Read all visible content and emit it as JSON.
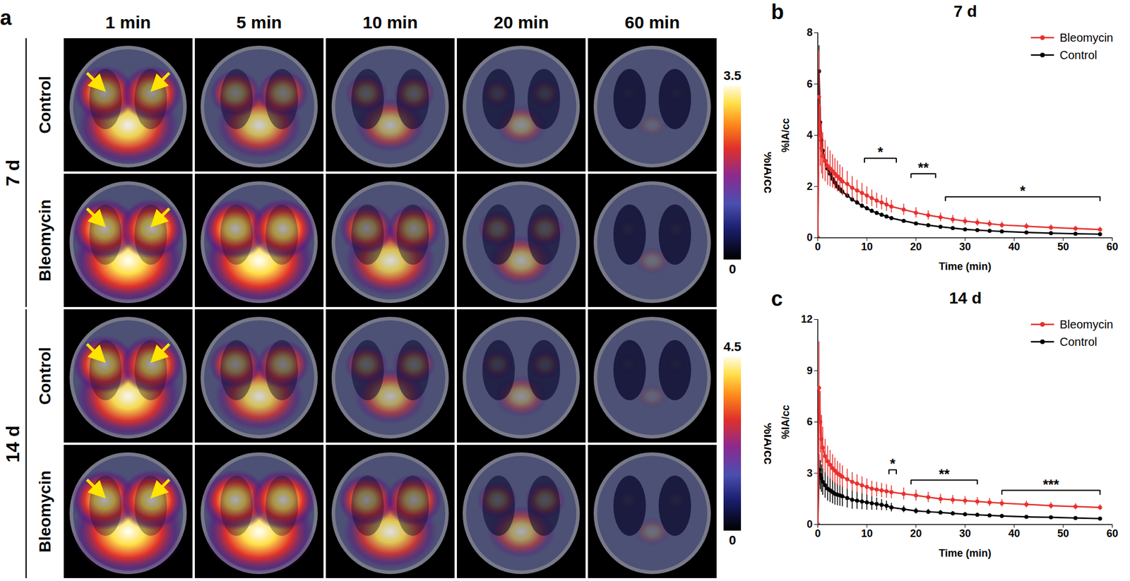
{
  "panel_a": {
    "label": "a",
    "columns": [
      "1 min",
      "5 min",
      "10 min",
      "20 min",
      "60 min"
    ],
    "groups": [
      {
        "label": "7 d",
        "rows": [
          "Control",
          "Bleomycin"
        ],
        "colorbar": {
          "range": [
            0,
            3.5
          ],
          "ticks": [
            0,
            3.5
          ],
          "label": "%IA/cc"
        }
      },
      {
        "label": "14 d",
        "rows": [
          "Control",
          "Bleomycin"
        ],
        "colorbar": {
          "range": [
            0,
            4.5
          ],
          "ticks": [
            0,
            4.5
          ],
          "label": "%IA/cc"
        }
      }
    ]
  },
  "chart_data": [
    {
      "type": "line",
      "panel": "b",
      "title": "7 d",
      "x_label": "Time (min)",
      "y_label": "%IA/cc",
      "x": [
        0,
        0.25,
        0.5,
        0.75,
        1,
        1.5,
        2,
        2.5,
        3,
        3.5,
        4,
        4.5,
        5,
        6,
        7,
        8,
        9,
        10,
        11,
        12,
        13,
        14,
        15,
        17.5,
        20,
        22.5,
        25,
        27.5,
        30,
        32.5,
        35,
        37.5,
        42.5,
        47.5,
        52.5,
        57.5
      ],
      "xlim": [
        0,
        60
      ],
      "xticks": [
        0,
        10,
        20,
        30,
        40,
        50,
        60
      ],
      "ylim": [
        0,
        8
      ],
      "yticks": [
        0,
        2,
        4,
        6,
        8
      ],
      "legend": "top-right",
      "marker": "circle",
      "series": [
        {
          "name": "Bleomycin",
          "color": "#e8312f",
          "values": [
            0,
            5.5,
            4.0,
            3.5,
            3.2,
            3.0,
            2.8,
            2.7,
            2.6,
            2.5,
            2.4,
            2.3,
            2.2,
            2.1,
            1.95,
            1.85,
            1.75,
            1.65,
            1.55,
            1.45,
            1.38,
            1.3,
            1.22,
            1.1,
            0.98,
            0.88,
            0.8,
            0.72,
            0.65,
            0.6,
            0.55,
            0.5,
            0.45,
            0.4,
            0.36,
            0.32
          ],
          "error": [
            0,
            1.8,
            1.2,
            1.0,
            0.9,
            0.8,
            0.75,
            0.7,
            0.65,
            0.6,
            0.6,
            0.55,
            0.55,
            0.5,
            0.45,
            0.4,
            0.38,
            0.35,
            0.32,
            0.3,
            0.28,
            0.26,
            0.25,
            0.22,
            0.2,
            0.18,
            0.17,
            0.16,
            0.15,
            0.14,
            0.13,
            0.12,
            0.12,
            0.11,
            0.1,
            0.1
          ]
        },
        {
          "name": "Control",
          "color": "#000000",
          "values": [
            0,
            6.5,
            4.5,
            3.8,
            3.4,
            3.0,
            2.7,
            2.5,
            2.3,
            2.15,
            2.0,
            1.9,
            1.8,
            1.65,
            1.5,
            1.38,
            1.25,
            1.15,
            1.05,
            0.97,
            0.9,
            0.83,
            0.77,
            0.66,
            0.56,
            0.49,
            0.43,
            0.38,
            0.33,
            0.3,
            0.27,
            0.25,
            0.21,
            0.18,
            0.16,
            0.14
          ],
          "error": [
            0,
            1.0,
            0.6,
            0.4,
            0.3,
            0.25,
            0.2,
            0.18,
            0.16,
            0.15,
            0.14,
            0.13,
            0.12,
            0.11,
            0.1,
            0.1,
            0.09,
            0.08,
            0.08,
            0.07,
            0.07,
            0.06,
            0.06,
            0.05,
            0.05,
            0.05,
            0.04,
            0.04,
            0.04,
            0.03,
            0.03,
            0.03,
            0.03,
            0.03,
            0.02,
            0.02
          ]
        }
      ],
      "annotations": [
        {
          "text": "*",
          "x1": 9.5,
          "x2": 16,
          "y": 3.1
        },
        {
          "text": "**",
          "x1": 19,
          "x2": 24,
          "y": 2.5
        },
        {
          "text": "*",
          "x1": 26,
          "x2": 57.5,
          "y": 1.6
        }
      ]
    },
    {
      "type": "line",
      "panel": "c",
      "title": "14 d",
      "x_label": "Time (min)",
      "y_label": "%IA/cc",
      "x": [
        0,
        0.25,
        0.5,
        0.75,
        1,
        1.5,
        2,
        2.5,
        3,
        3.5,
        4,
        4.5,
        5,
        6,
        7,
        8,
        9,
        10,
        11,
        12,
        13,
        14,
        15,
        17.5,
        20,
        22.5,
        25,
        27.5,
        30,
        32.5,
        35,
        37.5,
        42.5,
        47.5,
        52.5,
        57.5
      ],
      "xlim": [
        0,
        60
      ],
      "xticks": [
        0,
        10,
        20,
        30,
        40,
        50,
        60
      ],
      "ylim": [
        0,
        12
      ],
      "yticks": [
        0,
        3,
        6,
        9,
        12
      ],
      "legend": "top-right",
      "marker": "circle",
      "series": [
        {
          "name": "Bleomycin",
          "color": "#e8312f",
          "values": [
            0,
            8.0,
            6.0,
            5.0,
            4.5,
            4.0,
            3.7,
            3.5,
            3.3,
            3.15,
            3.0,
            2.9,
            2.8,
            2.65,
            2.5,
            2.4,
            2.3,
            2.2,
            2.1,
            2.05,
            2.0,
            1.95,
            1.9,
            1.8,
            1.7,
            1.6,
            1.5,
            1.45,
            1.4,
            1.35,
            1.3,
            1.25,
            1.18,
            1.1,
            1.05,
            1.0
          ],
          "error": [
            0,
            2.7,
            1.8,
            1.4,
            1.2,
            1.0,
            0.9,
            0.85,
            0.8,
            0.75,
            0.7,
            0.68,
            0.65,
            0.6,
            0.55,
            0.52,
            0.5,
            0.47,
            0.45,
            0.43,
            0.42,
            0.4,
            0.38,
            0.35,
            0.32,
            0.3,
            0.28,
            0.26,
            0.25,
            0.24,
            0.23,
            0.22,
            0.2,
            0.19,
            0.18,
            0.17
          ]
        },
        {
          "name": "Control",
          "color": "#000000",
          "values": [
            0,
            3.2,
            2.9,
            2.7,
            2.5,
            2.3,
            2.1,
            2.0,
            1.9,
            1.8,
            1.75,
            1.7,
            1.65,
            1.55,
            1.45,
            1.4,
            1.35,
            1.3,
            1.25,
            1.2,
            1.15,
            1.1,
            1.0,
            0.9,
            0.8,
            0.75,
            0.7,
            0.65,
            0.6,
            0.57,
            0.53,
            0.5,
            0.45,
            0.42,
            0.38,
            0.35
          ],
          "error": [
            0,
            0.9,
            0.85,
            0.8,
            0.78,
            0.75,
            0.72,
            0.7,
            0.68,
            0.66,
            0.64,
            0.62,
            0.6,
            0.57,
            0.54,
            0.5,
            0.47,
            0.44,
            0.4,
            0.36,
            0.32,
            0.28,
            0.25,
            0.2,
            0.17,
            0.15,
            0.13,
            0.12,
            0.11,
            0.1,
            0.09,
            0.09,
            0.08,
            0.07,
            0.07,
            0.06
          ]
        }
      ],
      "annotations": [
        {
          "text": "*",
          "x1": 14.5,
          "x2": 16,
          "y": 3.2
        },
        {
          "text": "**",
          "x1": 19,
          "x2": 32.5,
          "y": 2.6
        },
        {
          "text": "***",
          "x1": 37.5,
          "x2": 57.5,
          "y": 2.0
        }
      ]
    }
  ]
}
